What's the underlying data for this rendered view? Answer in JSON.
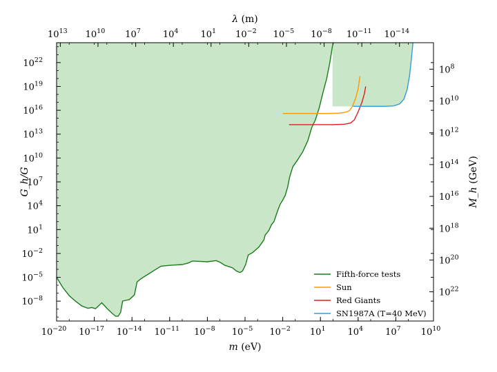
{
  "chart_data": {
    "type": "line",
    "xlabel": "m (eV)",
    "ylabel": "G_h/G",
    "top_xlabel": "λ (m)",
    "right_ylabel": "M_h (GeV)",
    "x_scale": "log",
    "y_scale": "log",
    "xlim_exp": [
      -20,
      10
    ],
    "ylim_exp": [
      -10.5,
      24.5
    ],
    "bottom_tick_exps": [
      -20,
      -17,
      -14,
      -11,
      -8,
      -5,
      -2,
      1,
      4,
      7,
      10
    ],
    "left_tick_exps": [
      -8,
      -5,
      -2,
      1,
      4,
      7,
      10,
      13,
      16,
      19,
      22
    ],
    "top_tick_exps": [
      13,
      10,
      7,
      4,
      1,
      -2,
      -5,
      -8,
      -11,
      -14
    ],
    "top_tick_note": "lambda (m) = 1.97e-7 / m(eV)",
    "right_tick_exps": [
      8,
      10,
      12,
      14,
      16,
      18,
      20,
      22
    ],
    "right_tick_note": "G_h/G = 1.49e37 / M_h(GeV)^2",
    "excluded_region_color": "#c9e6c9",
    "legend_position": "lower-right",
    "series": [
      {
        "name": "Fifth-force tests",
        "color": "#1a7a1a",
        "fill_region_above": true,
        "points": [
          [
            -20,
            -5.0
          ],
          [
            -19.5,
            -6.3
          ],
          [
            -19,
            -7.3
          ],
          [
            -18.5,
            -8.0
          ],
          [
            -18,
            -8.6
          ],
          [
            -17.5,
            -8.9
          ],
          [
            -17.2,
            -8.8
          ],
          [
            -16.9,
            -8.95
          ],
          [
            -16.6,
            -8.5
          ],
          [
            -16.4,
            -8.2
          ],
          [
            -16,
            -8.9
          ],
          [
            -15.6,
            -9.5
          ],
          [
            -15.3,
            -9.9
          ],
          [
            -15.1,
            -9.9
          ],
          [
            -14.9,
            -9.4
          ],
          [
            -14.75,
            -8.0
          ],
          [
            -14.5,
            -7.9
          ],
          [
            -14.2,
            -7.8
          ],
          [
            -13.8,
            -7.2
          ],
          [
            -13.6,
            -5.6
          ],
          [
            -13.3,
            -5.2
          ],
          [
            -12.7,
            -4.6
          ],
          [
            -12.0,
            -3.9
          ],
          [
            -11.7,
            -3.6
          ],
          [
            -11.0,
            -3.5
          ],
          [
            -10.0,
            -3.4
          ],
          [
            -9.5,
            -3.2
          ],
          [
            -9.2,
            -2.95
          ],
          [
            -8.6,
            -3.0
          ],
          [
            -8.0,
            -3.05
          ],
          [
            -7.3,
            -2.9
          ],
          [
            -7.0,
            -3.1
          ],
          [
            -6.6,
            -3.5
          ],
          [
            -6.0,
            -3.8
          ],
          [
            -5.7,
            -4.2
          ],
          [
            -5.4,
            -4.4
          ],
          [
            -5.2,
            -4.2
          ],
          [
            -4.95,
            -3.4
          ],
          [
            -4.75,
            -2.2
          ],
          [
            -4.4,
            -1.9
          ],
          [
            -3.9,
            -1.2
          ],
          [
            -3.5,
            -0.3
          ],
          [
            -3.4,
            0.3
          ],
          [
            -3.1,
            0.9
          ],
          [
            -2.9,
            1.6
          ],
          [
            -2.7,
            2.0
          ],
          [
            -2.4,
            3.4
          ],
          [
            -2.2,
            4.2
          ],
          [
            -2.0,
            4.7
          ],
          [
            -1.8,
            5.3
          ],
          [
            -1.6,
            6.4
          ],
          [
            -1.45,
            7.6
          ],
          [
            -1.2,
            8.9
          ],
          [
            -0.8,
            9.8
          ],
          [
            -0.4,
            10.8
          ],
          [
            0.0,
            12.2
          ],
          [
            0.3,
            13.8
          ],
          [
            0.6,
            14.8
          ],
          [
            0.9,
            16.3
          ],
          [
            1.2,
            18.2
          ],
          [
            1.5,
            20.0
          ],
          [
            1.75,
            22.0
          ],
          [
            1.95,
            24.0
          ],
          [
            2.02,
            24.5
          ]
        ]
      },
      {
        "name": "Sun",
        "color": "#ff9900",
        "fill_region_above": false,
        "points": [
          [
            -2.0,
            15.6
          ],
          [
            0.0,
            15.6
          ],
          [
            1.5,
            15.6
          ],
          [
            2.5,
            15.65
          ],
          [
            3.0,
            15.75
          ],
          [
            3.3,
            15.95
          ],
          [
            3.55,
            16.5
          ],
          [
            3.8,
            17.5
          ],
          [
            4.0,
            18.7
          ],
          [
            4.15,
            20.3
          ]
        ]
      },
      {
        "name": "Red Giants",
        "color": "#e31a1c",
        "fill_region_above": false,
        "points": [
          [
            -1.5,
            14.2
          ],
          [
            0.0,
            14.2
          ],
          [
            2.0,
            14.2
          ],
          [
            2.9,
            14.25
          ],
          [
            3.4,
            14.4
          ],
          [
            3.7,
            14.8
          ],
          [
            4.0,
            15.8
          ],
          [
            4.3,
            17.0
          ],
          [
            4.5,
            18.1
          ],
          [
            4.6,
            19.0
          ]
        ]
      },
      {
        "name": "SN1987A (T=40 MeV)",
        "color": "#3399dd",
        "fill_region_above": true,
        "points": [
          [
            3.6,
            16.5
          ],
          [
            6.0,
            16.5
          ],
          [
            6.8,
            16.55
          ],
          [
            7.3,
            16.8
          ],
          [
            7.65,
            17.4
          ],
          [
            7.9,
            18.6
          ],
          [
            8.1,
            20.4
          ],
          [
            8.25,
            22.6
          ],
          [
            8.37,
            24.5
          ]
        ]
      }
    ]
  }
}
